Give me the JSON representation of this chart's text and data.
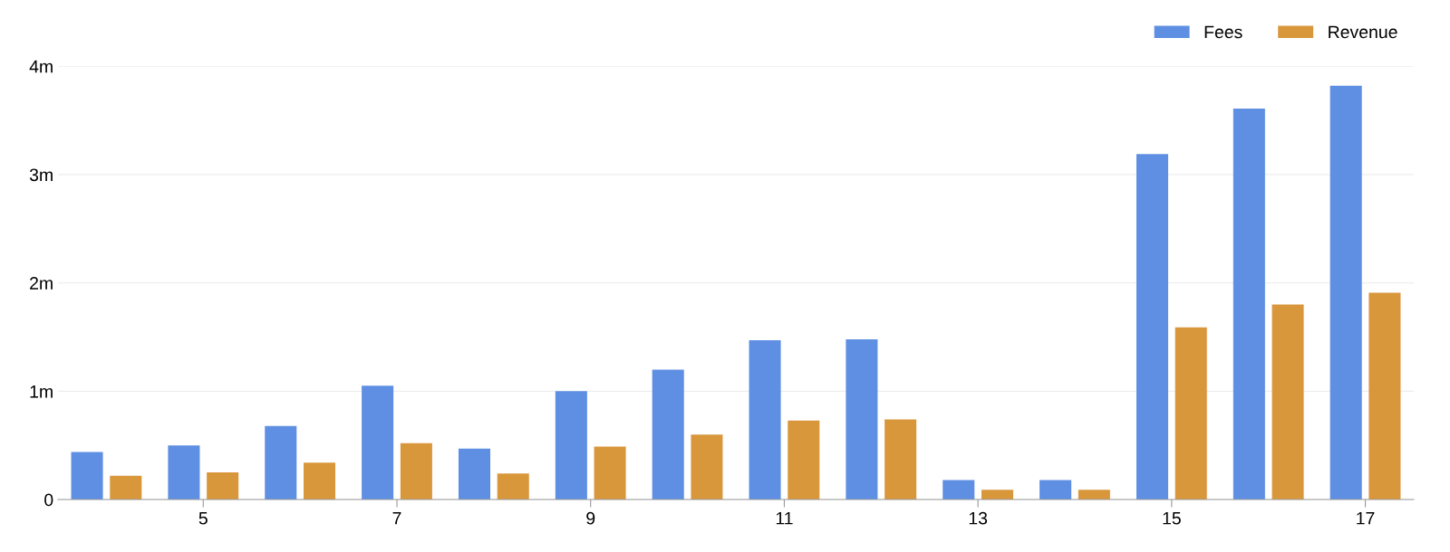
{
  "chart_data": {
    "type": "bar",
    "categories": [
      null,
      "5",
      null,
      "7",
      null,
      "9",
      null,
      "11",
      null,
      "13",
      null,
      "15",
      null,
      "17"
    ],
    "series": [
      {
        "name": "Fees",
        "color": "#5e8fe3",
        "values": [
          440000,
          500000,
          680000,
          1050000,
          470000,
          1000000,
          1200000,
          1470000,
          1480000,
          180000,
          180000,
          3190000,
          3610000,
          3820000
        ]
      },
      {
        "name": "Revenue",
        "color": "#d9973c",
        "values": [
          220000,
          250000,
          340000,
          520000,
          240000,
          490000,
          600000,
          730000,
          740000,
          90000,
          90000,
          1590000,
          1800000,
          1910000
        ]
      }
    ],
    "ylim": [
      0,
      4000000
    ],
    "yticks": [
      0,
      {
        "value": 1000000,
        "label": "1m"
      },
      {
        "value": 2000000,
        "label": "2m"
      },
      {
        "value": 3000000,
        "label": "3m"
      },
      {
        "value": 4000000,
        "label": "4m"
      }
    ],
    "grid": "y",
    "legend": "top right"
  }
}
